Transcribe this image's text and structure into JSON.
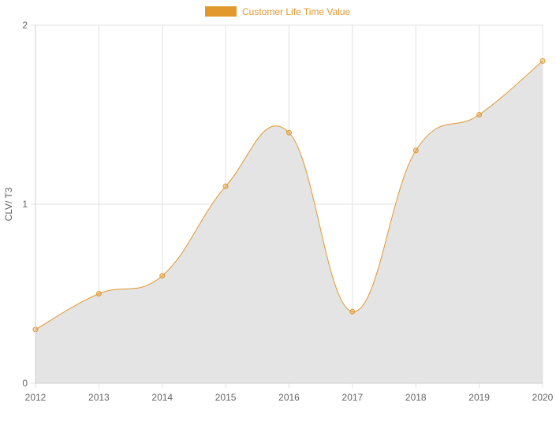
{
  "chart_data": {
    "type": "area",
    "title": "",
    "xlabel": "",
    "ylabel": "CLV/ T3",
    "categories": [
      "2012",
      "2013",
      "2014",
      "2015",
      "2016",
      "2017",
      "2018",
      "2019",
      "2020"
    ],
    "series": [
      {
        "name": "Customer Life Time Value",
        "values": [
          0.3,
          0.5,
          0.6,
          1.1,
          1.4,
          0.4,
          1.3,
          1.5,
          1.8
        ],
        "line_color": "#E0982F",
        "fill_color": "#E5E4E4"
      }
    ],
    "ylim": [
      0,
      2
    ],
    "y_ticks": [
      "0",
      "1",
      "2"
    ],
    "grid": true,
    "legend_position": "top-center",
    "grid_color": "#E0E0E0",
    "tick_color": "#666666"
  }
}
